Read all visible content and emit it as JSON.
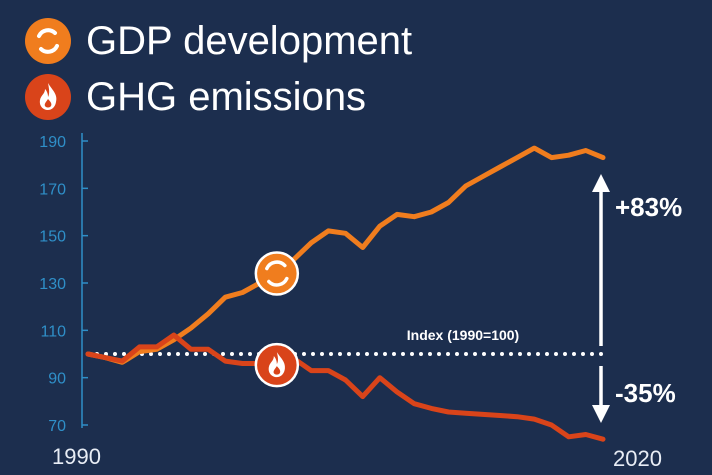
{
  "colors": {
    "background": "#1c2e4e",
    "gdp": "#f07d1e",
    "ghg": "#d9441a",
    "axis": "#2f8fc8",
    "text": "#ffffff"
  },
  "legend": [
    {
      "label": "GDP development",
      "icon": "refresh-cycle-icon",
      "color": "#f07d1e"
    },
    {
      "label": "GHG emissions",
      "icon": "flame-icon",
      "color": "#d9441a"
    }
  ],
  "chart_data": {
    "type": "line",
    "title": "",
    "xlabel": "",
    "ylabel": "",
    "x": [
      1990,
      1991,
      1992,
      1993,
      1994,
      1995,
      1996,
      1997,
      1998,
      1999,
      2000,
      2001,
      2002,
      2003,
      2004,
      2005,
      2006,
      2007,
      2008,
      2009,
      2010,
      2011,
      2012,
      2013,
      2014,
      2015,
      2016,
      2017,
      2018,
      2019,
      2020
    ],
    "x_tick_labels": [
      "1990",
      "2020"
    ],
    "y_ticks": [
      70,
      90,
      110,
      130,
      150,
      170,
      190
    ],
    "ylim": [
      70,
      190
    ],
    "xlim": [
      1990,
      2020
    ],
    "grid": false,
    "legend_position": "top-left",
    "series": [
      {
        "name": "GDP development",
        "color": "#f07d1e",
        "values": [
          100,
          98.5,
          96.5,
          101,
          102,
          106,
          111,
          117,
          124,
          126,
          130,
          134,
          140,
          147,
          152,
          151,
          145,
          154,
          159,
          158,
          160,
          164,
          171,
          175,
          179,
          183,
          187,
          183,
          184,
          186,
          183
        ]
      },
      {
        "name": "GHG emissions",
        "color": "#d9441a",
        "values": [
          100,
          98.5,
          97,
          103,
          103,
          108,
          102,
          102,
          97,
          96,
          96,
          97,
          98,
          93,
          93,
          89,
          82,
          90,
          84,
          79,
          77,
          75.5,
          75,
          74.5,
          74,
          73.5,
          72.5,
          70,
          65,
          66,
          64
        ]
      }
    ],
    "reference_line": {
      "value": 100,
      "label": "Index (1990=100)"
    },
    "annotations": [
      {
        "text": "+83%",
        "series": "GDP development"
      },
      {
        "text": "-35%",
        "series": "GHG emissions"
      }
    ],
    "markers": [
      {
        "series": "GDP development",
        "x": 2001,
        "icon": "refresh-cycle-icon"
      },
      {
        "series": "GHG emissions",
        "x": 2001,
        "icon": "flame-icon"
      }
    ]
  }
}
